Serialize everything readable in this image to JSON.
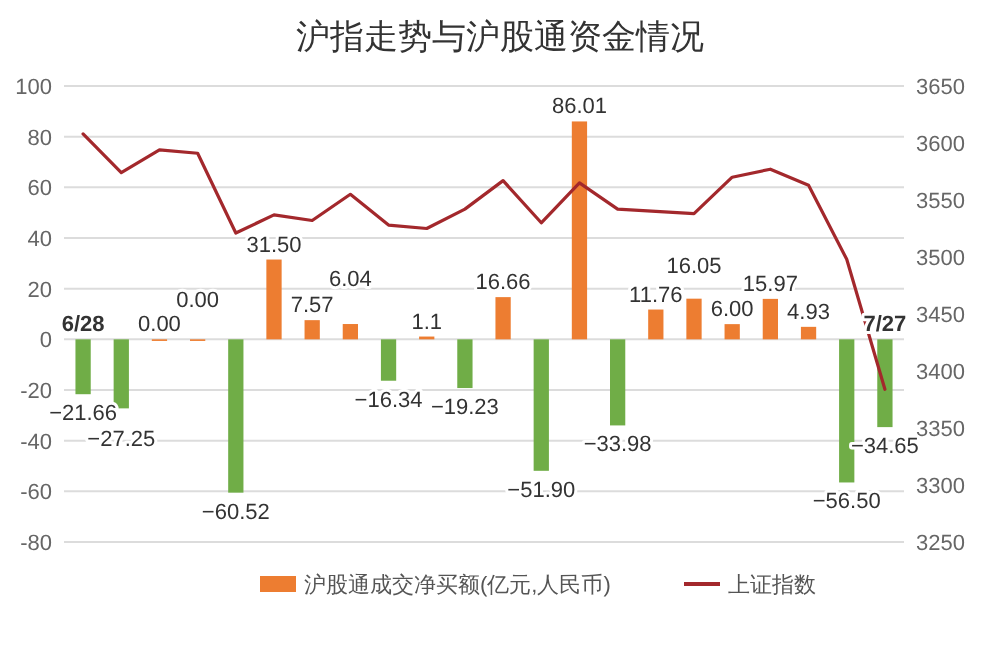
{
  "chart_data": {
    "type": "bar",
    "title": "沪指走势与沪股通资金情况",
    "categories": [
      "6/28",
      null,
      null,
      null,
      null,
      null,
      null,
      null,
      null,
      null,
      null,
      null,
      null,
      null,
      null,
      null,
      null,
      null,
      null,
      null,
      null,
      "7/27"
    ],
    "series": [
      {
        "name": "沪股通成交净买额(亿元,人民币)",
        "color": "#ed7d31",
        "colors": [
          "#70ad47",
          "#70ad47",
          "#ed7d31",
          "#ed7d31",
          "#70ad47",
          "#ed7d31",
          "#ed7d31",
          "#ed7d31",
          "#70ad47",
          "#ed7d31",
          "#70ad47",
          "#ed7d31",
          "#70ad47",
          "#ed7d31",
          "#70ad47",
          "#ed7d31",
          "#ed7d31",
          "#ed7d31",
          "#ed7d31",
          "#ed7d31",
          "#70ad47",
          "#70ad47"
        ],
        "values": [
          -21.66,
          -27.25,
          0.0,
          0.0,
          -60.52,
          31.5,
          7.57,
          6.04,
          -16.34,
          1.1,
          -19.23,
          16.66,
          -51.9,
          86.01,
          -33.98,
          11.76,
          16.05,
          6.0,
          15.97,
          4.93,
          -56.5,
          -34.65
        ],
        "value_labels": [
          "−21.66",
          "−27.25",
          "0.00",
          "0.00",
          "−60.52",
          "31.50",
          "7.57",
          "6.04",
          "−16.34",
          "1.1",
          "−19.23",
          "16.66",
          "−51.90",
          "86.01",
          "−33.98",
          "11.76",
          "16.05",
          "6.00",
          "15.97",
          "4.93",
          "−56.50",
          "−34.65"
        ]
      },
      {
        "name": "上证指数",
        "type": "line",
        "axis": "y2",
        "color": "#a3282c",
        "values": [
          3608,
          3574,
          3594,
          3591,
          3521,
          3537,
          3532,
          3555,
          3528,
          3525,
          3542,
          3567,
          3530,
          3565,
          3542,
          3540,
          3538,
          3570,
          3577,
          3563,
          3498,
          3384
        ]
      }
    ],
    "ylim": [
      -80,
      100
    ],
    "yticks": [
      -80,
      -60,
      -40,
      -20,
      0,
      20,
      40,
      60,
      80,
      100
    ],
    "y2lim": [
      3250,
      3650
    ],
    "y2ticks": [
      3250,
      3300,
      3350,
      3400,
      3450,
      3500,
      3550,
      3600,
      3650
    ],
    "grid": "y",
    "legend": "bottom",
    "marker": "none",
    "line_style": "solid"
  }
}
